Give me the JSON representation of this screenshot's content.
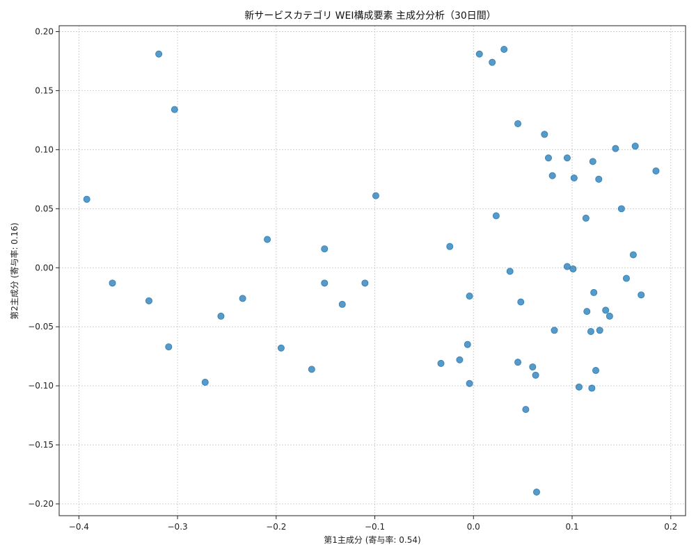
{
  "chart_data": {
    "type": "scatter",
    "title": "新サービスカテゴリ WEI構成要素 主成分分析（30日間）",
    "xlabel": "第1主成分 (寄与率: 0.54)",
    "ylabel": "第2主成分 (寄与率: 0.16)",
    "xlim": [
      -0.42,
      0.215
    ],
    "ylim": [
      -0.21,
      0.205
    ],
    "xticks": [
      -0.4,
      -0.3,
      -0.2,
      -0.1,
      0.0,
      0.1,
      0.2
    ],
    "yticks": [
      -0.2,
      -0.15,
      -0.1,
      -0.05,
      0.0,
      0.05,
      0.1,
      0.15,
      0.2
    ],
    "xtick_labels": [
      "−0.4",
      "−0.3",
      "−0.2",
      "−0.1",
      "0.0",
      "0.1",
      "0.2"
    ],
    "ytick_labels": [
      "−0.20",
      "−0.15",
      "−0.10",
      "−0.05",
      "0.00",
      "0.05",
      "0.10",
      "0.15",
      "0.20"
    ],
    "grid": true,
    "point_color": "#1f77b4",
    "points": [
      [
        -0.392,
        0.058
      ],
      [
        -0.319,
        0.181
      ],
      [
        -0.303,
        0.134
      ],
      [
        -0.366,
        -0.013
      ],
      [
        -0.329,
        -0.028
      ],
      [
        -0.309,
        -0.067
      ],
      [
        -0.272,
        -0.097
      ],
      [
        -0.256,
        -0.041
      ],
      [
        -0.234,
        -0.026
      ],
      [
        -0.209,
        0.024
      ],
      [
        -0.195,
        -0.068
      ],
      [
        -0.164,
        -0.086
      ],
      [
        -0.151,
        0.016
      ],
      [
        -0.151,
        -0.013
      ],
      [
        -0.133,
        -0.031
      ],
      [
        -0.11,
        -0.013
      ],
      [
        -0.099,
        0.061
      ],
      [
        -0.024,
        0.018
      ],
      [
        -0.033,
        -0.081
      ],
      [
        -0.014,
        -0.078
      ],
      [
        -0.006,
        -0.065
      ],
      [
        -0.004,
        -0.098
      ],
      [
        -0.004,
        -0.024
      ],
      [
        0.006,
        0.181
      ],
      [
        0.019,
        0.174
      ],
      [
        0.031,
        0.185
      ],
      [
        0.023,
        0.044
      ],
      [
        0.037,
        -0.003
      ],
      [
        0.045,
        0.122
      ],
      [
        0.045,
        -0.08
      ],
      [
        0.048,
        -0.029
      ],
      [
        0.053,
        -0.12
      ],
      [
        0.06,
        -0.084
      ],
      [
        0.063,
        -0.091
      ],
      [
        0.064,
        -0.19
      ],
      [
        0.072,
        0.113
      ],
      [
        0.076,
        0.093
      ],
      [
        0.08,
        0.078
      ],
      [
        0.082,
        -0.053
      ],
      [
        0.095,
        0.093
      ],
      [
        0.095,
        0.001
      ],
      [
        0.101,
        -0.001
      ],
      [
        0.102,
        0.076
      ],
      [
        0.107,
        -0.101
      ],
      [
        0.114,
        0.042
      ],
      [
        0.115,
        -0.037
      ],
      [
        0.119,
        -0.054
      ],
      [
        0.12,
        -0.102
      ],
      [
        0.121,
        0.09
      ],
      [
        0.122,
        -0.021
      ],
      [
        0.124,
        -0.087
      ],
      [
        0.127,
        0.075
      ],
      [
        0.128,
        -0.053
      ],
      [
        0.134,
        -0.036
      ],
      [
        0.138,
        -0.041
      ],
      [
        0.144,
        0.101
      ],
      [
        0.15,
        0.05
      ],
      [
        0.155,
        -0.009
      ],
      [
        0.162,
        0.011
      ],
      [
        0.164,
        0.103
      ],
      [
        0.17,
        -0.023
      ],
      [
        0.185,
        0.082
      ]
    ]
  }
}
